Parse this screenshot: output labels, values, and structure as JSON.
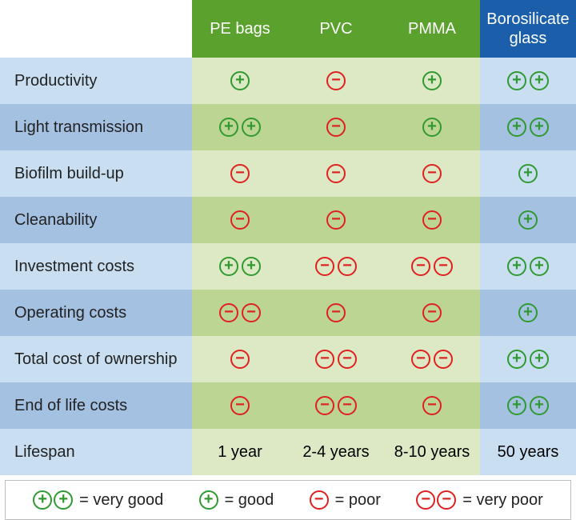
{
  "colors": {
    "header_green": "#5aa22d",
    "header_blue": "#1b5faa",
    "row_label_light": "#c9dff1",
    "row_label_dark": "#a4c1e2",
    "cell_green_light": "#dce9c4",
    "cell_green_dark": "#bdd592",
    "cell_blue_light": "#c9dff1",
    "cell_blue_dark": "#a4c1e2",
    "plus_icon": "#2f9a2f",
    "minus_icon": "#e02020",
    "text": "#222222"
  },
  "columns": [
    {
      "key": "pe",
      "label": "PE bags",
      "header_bg": "header_green",
      "cell_palette": "green"
    },
    {
      "key": "pvc",
      "label": "PVC",
      "header_bg": "header_green",
      "cell_palette": "green"
    },
    {
      "key": "pmma",
      "label": "PMMA",
      "header_bg": "header_green",
      "cell_palette": "green"
    },
    {
      "key": "boro",
      "label": "Borosilicate glass",
      "header_bg": "header_blue",
      "cell_palette": "blue"
    }
  ],
  "rows": [
    {
      "label": "Productivity",
      "cells": {
        "pe": "plus",
        "pvc": "minus",
        "pmma": "plus",
        "boro": "plus_plus"
      }
    },
    {
      "label": "Light transmission",
      "cells": {
        "pe": "plus_plus",
        "pvc": "minus",
        "pmma": "plus",
        "boro": "plus_plus"
      }
    },
    {
      "label": "Biofilm build-up",
      "cells": {
        "pe": "minus",
        "pvc": "minus",
        "pmma": "minus",
        "boro": "plus"
      }
    },
    {
      "label": "Cleanability",
      "cells": {
        "pe": "minus",
        "pvc": "minus",
        "pmma": "minus",
        "boro": "plus"
      }
    },
    {
      "label": "Investment costs",
      "cells": {
        "pe": "plus_plus",
        "pvc": "minus_minus",
        "pmma": "minus_minus",
        "boro": "plus_plus"
      }
    },
    {
      "label": "Operating costs",
      "cells": {
        "pe": "minus_minus",
        "pvc": "minus",
        "pmma": "minus",
        "boro": "plus"
      }
    },
    {
      "label": "Total cost of ownership",
      "cells": {
        "pe": "minus",
        "pvc": "minus_minus",
        "pmma": "minus_minus",
        "boro": "plus_plus"
      }
    },
    {
      "label": "End of life costs",
      "cells": {
        "pe": "minus",
        "pvc": "minus_minus",
        "pmma": "minus",
        "boro": "plus_plus"
      }
    },
    {
      "label": "Lifespan",
      "cells": {
        "pe": "1 year",
        "pvc": "2-4 years",
        "pmma": "8-10 years",
        "boro": "50 years"
      },
      "is_text": true
    }
  ],
  "legend": [
    {
      "symbol": "plus_plus",
      "label": "= very good"
    },
    {
      "symbol": "plus",
      "label": "= good"
    },
    {
      "symbol": "minus",
      "label": "= poor"
    },
    {
      "symbol": "minus_minus",
      "label": "= very poor"
    }
  ]
}
